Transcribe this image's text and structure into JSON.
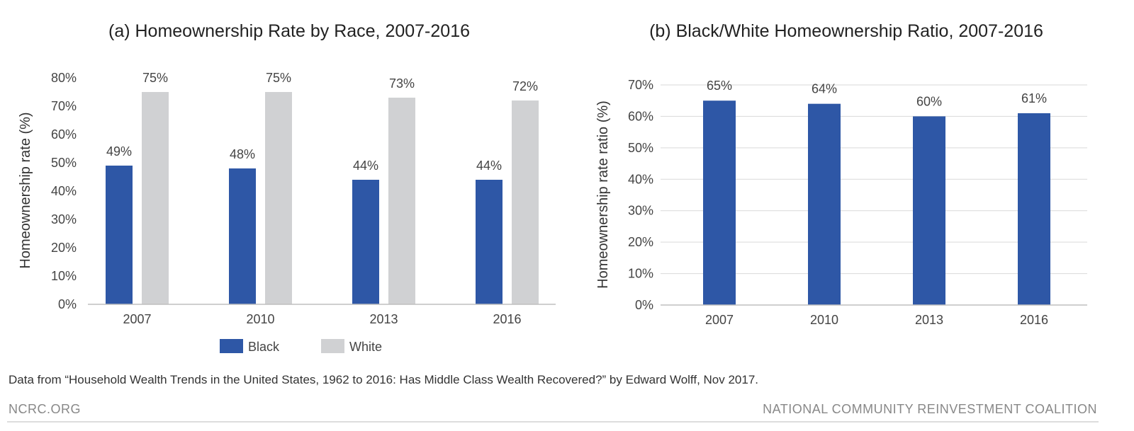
{
  "colors": {
    "black_series": "#2e57a6",
    "white_series": "#d0d1d3",
    "footer_rule": "#bbbbbb"
  },
  "chart_data": [
    {
      "type": "bar",
      "title": "(a) Homeownership Rate by Race, 2007-2016",
      "xlabel": "",
      "ylabel": "Homeownership rate (%)",
      "categories": [
        "2007",
        "2010",
        "2013",
        "2016"
      ],
      "ylim": [
        0,
        80
      ],
      "yticks": [
        "0%",
        "10%",
        "20%",
        "30%",
        "40%",
        "50%",
        "60%",
        "70%",
        "80%"
      ],
      "grid": false,
      "legend": "bottom",
      "series": [
        {
          "name": "Black",
          "values": [
            49,
            48,
            44,
            44
          ],
          "labels": [
            "49%",
            "48%",
            "44%",
            "44%"
          ],
          "color": "#2e57a6"
        },
        {
          "name": "White",
          "values": [
            75,
            75,
            73,
            72
          ],
          "labels": [
            "75%",
            "75%",
            "73%",
            "72%"
          ],
          "color": "#d0d1d3"
        }
      ]
    },
    {
      "type": "bar",
      "title": "(b) Black/White Homeownership Ratio, 2007-2016",
      "xlabel": "",
      "ylabel": "Homeownership rate ratio (%)",
      "categories": [
        "2007",
        "2010",
        "2013",
        "2016"
      ],
      "ylim": [
        0,
        70
      ],
      "yticks": [
        "0%",
        "10%",
        "20%",
        "30%",
        "40%",
        "50%",
        "60%",
        "70%"
      ],
      "grid": true,
      "series": [
        {
          "values": [
            65,
            64,
            60,
            61
          ],
          "labels": [
            "65%",
            "64%",
            "60%",
            "61%"
          ],
          "color": "#2e57a6"
        }
      ]
    }
  ],
  "source_note": "Data from “Household Wealth Trends in the United States, 1962 to 2016: Has Middle Class Wealth Recovered?” by Edward Wolff, Nov 2017.",
  "footer": {
    "left": "NCRC.ORG",
    "right": "NATIONAL COMMUNITY REINVESTMENT COALITION"
  }
}
